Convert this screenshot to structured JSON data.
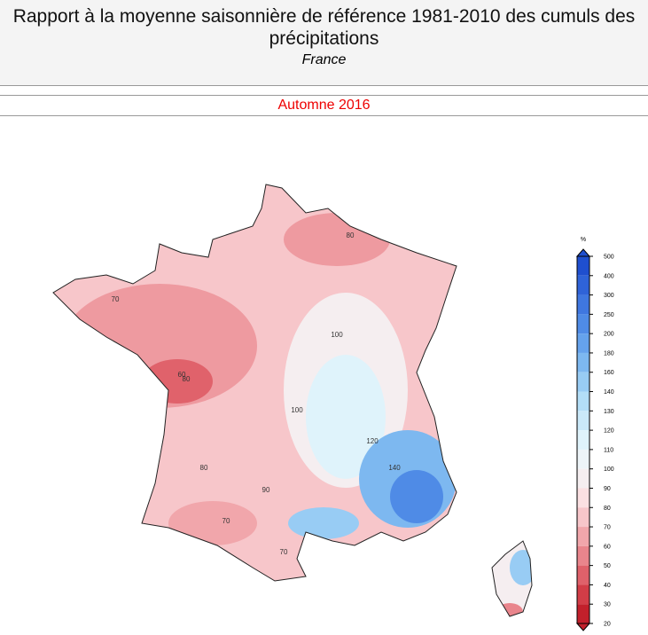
{
  "header": {
    "title": "Rapport à la moyenne saisonnière de référence 1981-2010 des cumuls des précipitations",
    "region": "France",
    "period": "Automne 2016"
  },
  "map": {
    "contour_labels": [
      "70",
      "80",
      "60",
      "80",
      "100",
      "100",
      "120",
      "140",
      "80",
      "70",
      "90",
      "70"
    ]
  },
  "colorbar": {
    "unit": "%",
    "ticks": [
      500,
      400,
      300,
      250,
      200,
      180,
      160,
      140,
      130,
      120,
      110,
      100,
      90,
      80,
      70,
      60,
      50,
      40,
      30,
      20
    ],
    "colors": [
      "#1f4fcf",
      "#2f63d8",
      "#3f77e0",
      "#4f8be6",
      "#65a2ec",
      "#7db8f0",
      "#98ccf4",
      "#b3def7",
      "#cae9f9",
      "#dff3fb",
      "#edf4f8",
      "#f5eef0",
      "#fbe0e2",
      "#f7c6ca",
      "#f1a6ab",
      "#e9858c",
      "#df616a",
      "#d23d47",
      "#c2202b"
    ]
  }
}
